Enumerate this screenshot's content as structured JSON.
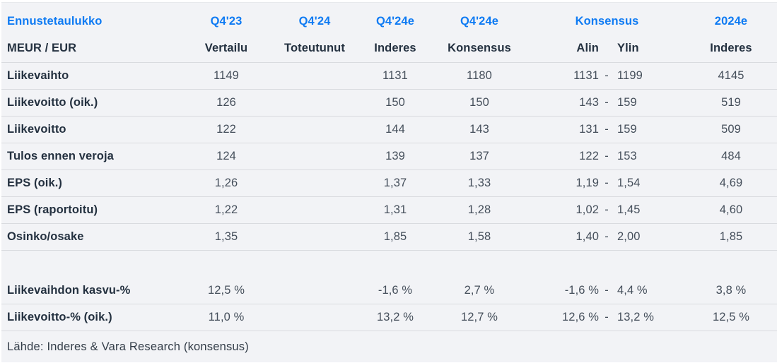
{
  "colors": {
    "accent_blue": "#0f7bf3",
    "table_background": "#f2f3f6",
    "separator_line": "#d9dbdf",
    "label_text": "#243140",
    "value_text": "#454f5b"
  },
  "header": {
    "title": "Ennustetaulukko",
    "subtitle": "MEUR / EUR",
    "periods": [
      "Q4'23",
      "Q4'24",
      "Q4'24e",
      "Q4'24e",
      "Konsensus",
      "2024e"
    ],
    "subheaders": [
      "Vertailu",
      "Toteutunut",
      "Inderes",
      "Konsensus",
      "Alin",
      "Ylin",
      "Inderes"
    ]
  },
  "rows": [
    {
      "label": "Liikevaihto",
      "vertailu": "1149",
      "toteutunut": "",
      "inderes": "1131",
      "konsensus": "1180",
      "alin": "1131",
      "dash": "-",
      "ylin": "1199",
      "y2024": "4145"
    },
    {
      "label": "Liikevoitto (oik.)",
      "vertailu": "126",
      "toteutunut": "",
      "inderes": "150",
      "konsensus": "150",
      "alin": "143",
      "dash": "-",
      "ylin": "159",
      "y2024": "519"
    },
    {
      "label": "Liikevoitto",
      "vertailu": "122",
      "toteutunut": "",
      "inderes": "144",
      "konsensus": "143",
      "alin": "131",
      "dash": "-",
      "ylin": "159",
      "y2024": "509"
    },
    {
      "label": "Tulos ennen veroja",
      "vertailu": "124",
      "toteutunut": "",
      "inderes": "139",
      "konsensus": "137",
      "alin": "122",
      "dash": "-",
      "ylin": "153",
      "y2024": "484"
    },
    {
      "label": "EPS (oik.)",
      "vertailu": "1,26",
      "toteutunut": "",
      "inderes": "1,37",
      "konsensus": "1,33",
      "alin": "1,19",
      "dash": "-",
      "ylin": "1,54",
      "y2024": "4,69"
    },
    {
      "label": "EPS (raportoitu)",
      "vertailu": "1,22",
      "toteutunut": "",
      "inderes": "1,31",
      "konsensus": "1,28",
      "alin": "1,02",
      "dash": "-",
      "ylin": "1,45",
      "y2024": "4,60"
    },
    {
      "label": "Osinko/osake",
      "vertailu": "1,35",
      "toteutunut": "",
      "inderes": "1,85",
      "konsensus": "1,58",
      "alin": "1,40",
      "dash": "-",
      "ylin": "2,00",
      "y2024": "1,85"
    },
    {
      "label": "Liikevaihdon kasvu-%",
      "vertailu": "12,5 %",
      "toteutunut": "",
      "inderes": "-1,6 %",
      "konsensus": "2,7 %",
      "alin": "-1,6 %",
      "dash": "-",
      "ylin": "4,4 %",
      "y2024": "3,8 %"
    },
    {
      "label": "Liikevoitto-% (oik.)",
      "vertailu": "11,0 %",
      "toteutunut": "",
      "inderes": "13,2 %",
      "konsensus": "12,7 %",
      "alin": "12,6 %",
      "dash": "-",
      "ylin": "13,2 %",
      "y2024": "12,5 %"
    }
  ],
  "footer": {
    "source": "Lähde: Inderes & Vara Research  (konsensus)"
  }
}
